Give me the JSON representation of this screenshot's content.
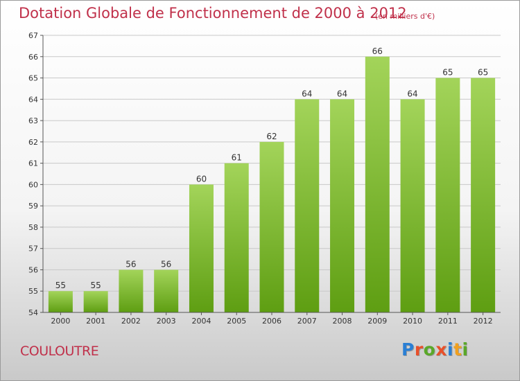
{
  "title": "Dotation Globale de Fonctionnement de 2000 à 2012",
  "unit_note": "(en milliers d'€)",
  "commune": "COULOUTRE",
  "logo": {
    "text": "Proxiti",
    "colors": [
      "#2a7fd4",
      "#e8502a",
      "#5aa829",
      "#e8502a",
      "#2a7fd4",
      "#f0a020",
      "#5aa829"
    ]
  },
  "colors": {
    "bar_top": "#a3d45a",
    "bar_bottom": "#5e9e12",
    "axis": "#555555",
    "grid": "#c8c8c8",
    "text": "#333333",
    "accent": "#c0304a"
  },
  "chart_data": {
    "type": "bar",
    "categories": [
      "2000",
      "2001",
      "2002",
      "2003",
      "2004",
      "2005",
      "2006",
      "2007",
      "2008",
      "2009",
      "2010",
      "2011",
      "2012"
    ],
    "values": [
      55,
      55,
      56,
      56,
      60,
      61,
      62,
      64,
      64,
      66,
      64,
      65,
      65
    ],
    "title": "Dotation Globale de Fonctionnement de 2000 à 2012",
    "subtitle": "(en milliers d'€)",
    "xlabel": "",
    "ylabel": "",
    "ylim": [
      54,
      67
    ],
    "yticks": [
      54,
      55,
      56,
      57,
      58,
      59,
      60,
      61,
      62,
      63,
      64,
      65,
      66,
      67
    ],
    "grid": true,
    "data_labels": true,
    "legend": "none"
  }
}
